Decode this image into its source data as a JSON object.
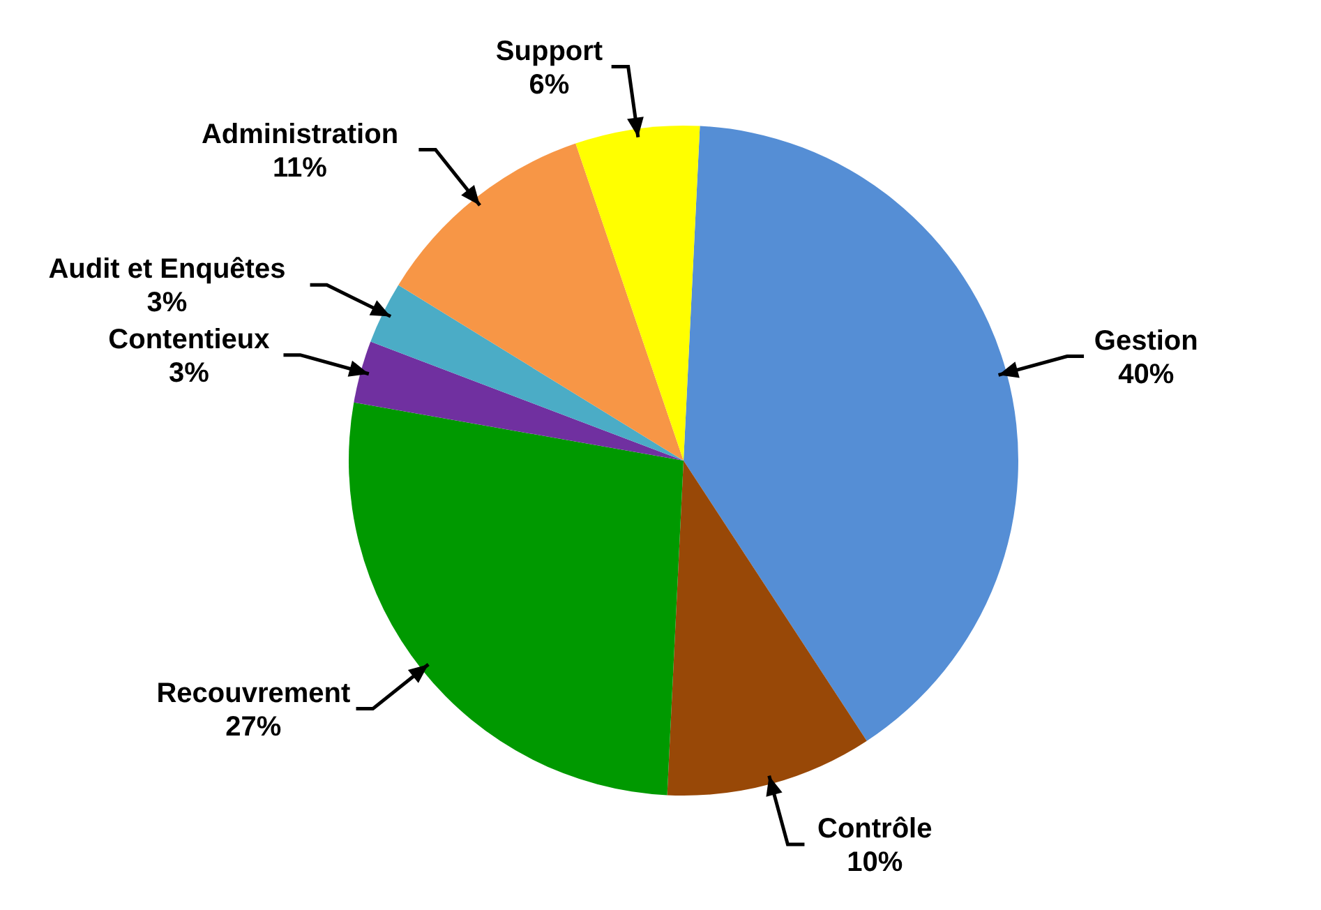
{
  "chart_data": {
    "type": "pie",
    "categories": [
      "Gestion",
      "Contrôle",
      "Recouvrement",
      "Contentieux",
      "Audit et Enquêtes",
      "Administration",
      "Support"
    ],
    "values": [
      40,
      10,
      27,
      3,
      3,
      11,
      6
    ],
    "value_labels": [
      "40%",
      "10%",
      "27%",
      "3%",
      "3%",
      "11%",
      "6%"
    ],
    "colors": [
      "#558ed5",
      "#984807",
      "#009900",
      "#7030a0",
      "#4bacc6",
      "#f79646",
      "#ffff00"
    ],
    "legend": false
  }
}
